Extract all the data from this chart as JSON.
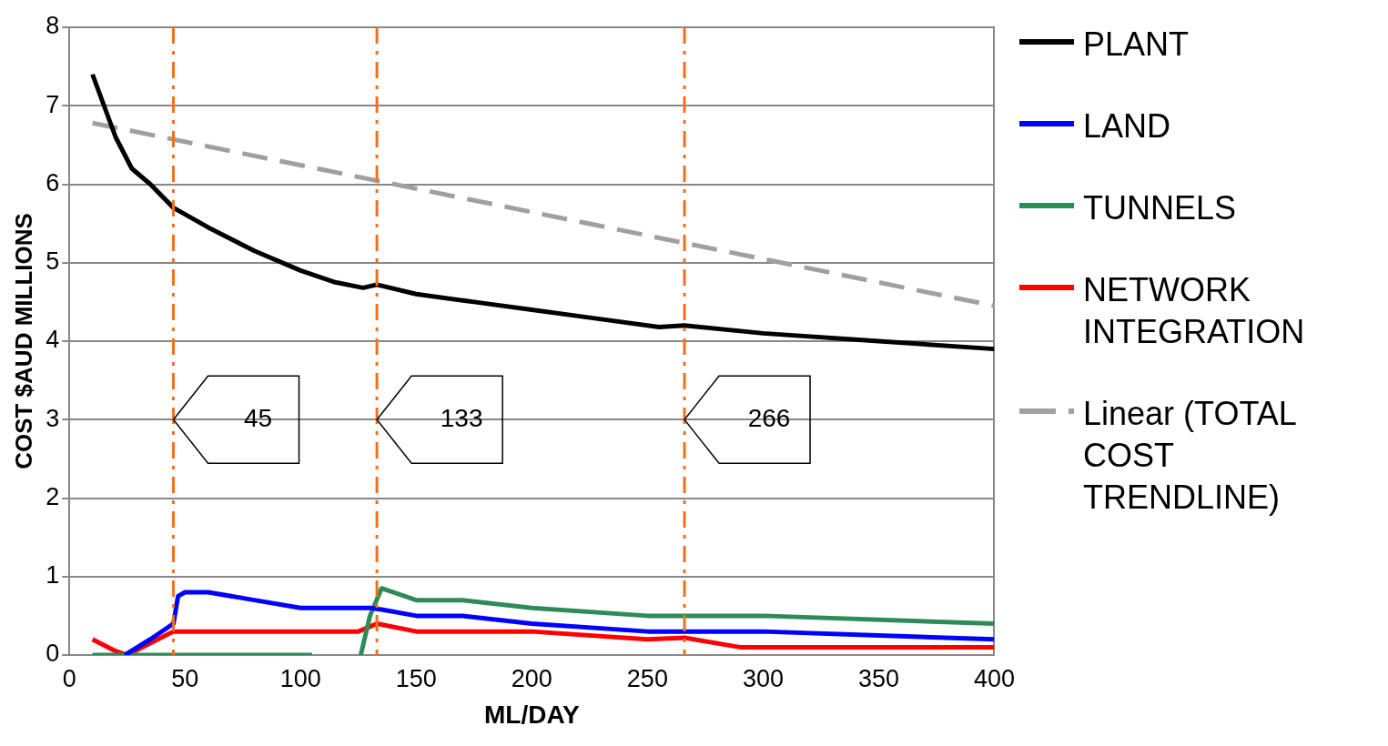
{
  "chart_data": {
    "type": "line",
    "xlabel": "ML/DAY",
    "ylabel": "COST $AUD MILLIONS",
    "xlim": [
      0,
      400
    ],
    "xticks": [
      0,
      50,
      100,
      150,
      200,
      250,
      300,
      350,
      400
    ],
    "ylim": [
      0,
      8
    ],
    "yticks": [
      0,
      1,
      2,
      3,
      4,
      5,
      6,
      7,
      8
    ],
    "grid": "y",
    "legend": "right",
    "marker": "none",
    "series": [
      {
        "name": "PLANT",
        "color": "#000000",
        "x": [
          10,
          15,
          20,
          27,
          35,
          45,
          60,
          80,
          100,
          115,
          127,
          133,
          150,
          175,
          200,
          225,
          255,
          266,
          300,
          350,
          400
        ],
        "values": [
          7.4,
          7.0,
          6.6,
          6.2,
          6.0,
          5.7,
          5.45,
          5.15,
          4.9,
          4.75,
          4.68,
          4.72,
          4.6,
          4.5,
          4.4,
          4.3,
          4.18,
          4.2,
          4.1,
          4.0,
          3.9
        ]
      },
      {
        "name": "LAND",
        "color": "#0000ff",
        "x": [
          24,
          35,
          45,
          47,
          50,
          60,
          80,
          100,
          130,
          135,
          150,
          170,
          200,
          250,
          300,
          350,
          400
        ],
        "values": [
          0.0,
          0.2,
          0.4,
          0.75,
          0.8,
          0.8,
          0.7,
          0.6,
          0.6,
          0.58,
          0.5,
          0.5,
          0.4,
          0.3,
          0.3,
          0.25,
          0.2
        ]
      },
      {
        "name": "TUNNELS",
        "color": "#2e8b57",
        "x": [
          10,
          105,
          115,
          126,
          130,
          135,
          150,
          170,
          200,
          250,
          300,
          400
        ],
        "values": [
          0,
          0,
          null,
          0,
          0.5,
          0.85,
          0.7,
          0.7,
          0.6,
          0.5,
          0.5,
          0.4
        ]
      },
      {
        "name": "NETWORK INTEGRATION",
        "color": "#ff0000",
        "x": [
          10,
          20,
          25,
          35,
          45,
          50,
          125,
          133,
          150,
          200,
          250,
          266,
          290,
          400
        ],
        "values": [
          0.2,
          0.05,
          0.0,
          0.15,
          0.3,
          0.3,
          0.3,
          0.4,
          0.3,
          0.3,
          0.2,
          0.22,
          0.1,
          0.1
        ]
      },
      {
        "name": "Linear (TOTAL COST TRENDLINE)",
        "color": "#a0a0a0",
        "line_style": "dashed",
        "x": [
          10,
          400
        ],
        "values": [
          6.78,
          4.45
        ]
      }
    ],
    "ref_lines": [
      {
        "axis": "x",
        "value": 45,
        "label": "45",
        "color": "#f07020",
        "line_style": "dashdot"
      },
      {
        "axis": "x",
        "value": 133,
        "label": "133",
        "color": "#f07020",
        "line_style": "dashdot"
      },
      {
        "axis": "x",
        "value": 266,
        "label": "266",
        "color": "#f07020",
        "line_style": "dashdot"
      }
    ]
  }
}
